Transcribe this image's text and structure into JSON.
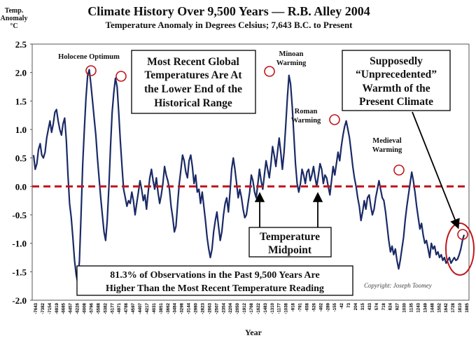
{
  "chart_data": {
    "type": "line",
    "title": "Climate History Over 9,500 Years — R.B. Alley 2004",
    "subtitle": "Temperature Anomaly in Degrees Celsius; 7,643 B.C. to Present",
    "ylabel_lines": [
      "Temp.",
      "Anomaly",
      "°C"
    ],
    "xlabel": "Year",
    "ylim": [
      -2.0,
      2.5
    ],
    "yticks": [
      "2.5",
      "2.0",
      "1.5",
      "1.0",
      "0.5",
      "0.0",
      "-0.5",
      "-1.0",
      "-1.5",
      "-2.0"
    ],
    "ytick_values": [
      2.5,
      2.0,
      1.5,
      1.0,
      0.5,
      0.0,
      -0.5,
      -1.0,
      -1.5,
      -2.0
    ],
    "xticks": [
      "-7643",
      "-7382",
      "-7154",
      "-6919",
      "-6685",
      "-6457",
      "-6226",
      "-6008",
      "-5796",
      "-5588",
      "-5382",
      "-5177",
      "-4971",
      "-4788",
      "-4597",
      "-4407",
      "-4217",
      "-4031",
      "-3851",
      "-3662",
      "-3484",
      "-3298",
      "-3144",
      "-2980",
      "-2823",
      "-2663",
      "-2507",
      "-2354",
      "-2204",
      "-2050",
      "-1912",
      "-1768",
      "-1622",
      "-1483",
      "-1310",
      "-1177",
      "-1038",
      "-918",
      "-791",
      "-658",
      "-526",
      "-402",
      "-289",
      "-155",
      "-42",
      "73",
      "204",
      "315",
      "433",
      "574",
      "718",
      "824",
      "927",
      "1030",
      "1135",
      "1243",
      "1349",
      "1448",
      "1552",
      "1642",
      "1728",
      "1810",
      "1885"
    ],
    "series": [
      {
        "name": "Temperature anomaly",
        "color": "#1a2a66",
        "values": [
          0.55,
          0.3,
          0.4,
          0.65,
          0.75,
          0.55,
          0.5,
          0.6,
          0.85,
          1.0,
          1.15,
          0.95,
          1.1,
          1.3,
          1.35,
          1.15,
          1.0,
          0.9,
          1.1,
          1.2,
          0.8,
          0.2,
          -0.3,
          -0.55,
          -0.9,
          -1.3,
          -1.55,
          -1.7,
          -1.3,
          -0.5,
          0.4,
          1.0,
          1.55,
          1.95,
          2.05,
          1.8,
          1.5,
          1.2,
          0.9,
          0.5,
          0.15,
          -0.2,
          -0.5,
          -0.8,
          -0.95,
          -0.6,
          0.0,
          0.7,
          1.3,
          1.65,
          1.9,
          1.75,
          1.3,
          0.8,
          0.35,
          -0.05,
          -0.2,
          -0.35,
          -0.25,
          -0.3,
          -0.1,
          -0.25,
          -0.5,
          -0.3,
          -0.1,
          0.1,
          -0.05,
          -0.25,
          -0.15,
          -0.4,
          -0.1,
          0.15,
          0.3,
          0.1,
          -0.05,
          0.15,
          -0.1,
          -0.3,
          -0.15,
          0.05,
          0.35,
          0.2,
          0.1,
          -0.05,
          -0.35,
          -0.55,
          -0.8,
          -0.7,
          -0.3,
          0.05,
          0.3,
          0.55,
          0.45,
          0.25,
          0.15,
          0.45,
          0.55,
          0.35,
          0.05,
          0.2,
          -0.1,
          -0.05,
          -0.3,
          -0.1,
          -0.35,
          -0.6,
          -0.9,
          -1.1,
          -1.25,
          -1.1,
          -0.8,
          -0.6,
          -0.45,
          -0.7,
          -0.95,
          -0.8,
          -0.5,
          -0.3,
          -0.2,
          -0.45,
          -0.1,
          0.3,
          0.5,
          0.3,
          0.05,
          -0.2,
          -0.05,
          -0.2,
          -0.4,
          -0.55,
          -0.5,
          -0.3,
          -0.1,
          0.2,
          0.1,
          -0.1,
          -0.2,
          0.05,
          0.3,
          0.1,
          -0.05,
          0.2,
          0.45,
          0.3,
          0.15,
          0.4,
          0.7,
          0.55,
          0.35,
          0.6,
          0.85,
          0.6,
          0.3,
          0.6,
          1.05,
          1.55,
          1.95,
          1.8,
          1.4,
          0.9,
          0.4,
          0.05,
          -0.1,
          0.05,
          0.3,
          0.2,
          0.05,
          0.25,
          0.3,
          0.1,
          0.2,
          0.35,
          0.15,
          0.0,
          0.2,
          0.4,
          0.3,
          0.05,
          0.2,
          0.15,
          0.0,
          -0.15,
          0.1,
          0.35,
          0.2,
          0.4,
          0.6,
          0.45,
          0.7,
          0.9,
          1.05,
          1.15,
          1.0,
          0.85,
          0.6,
          0.35,
          0.15,
          0.0,
          -0.2,
          -0.35,
          -0.6,
          -0.45,
          -0.25,
          -0.4,
          -0.2,
          -0.15,
          -0.35,
          -0.5,
          -0.4,
          -0.2,
          -0.05,
          0.1,
          -0.05,
          -0.2,
          -0.25,
          -0.45,
          -0.7,
          -0.95,
          -1.15,
          -1.05,
          -1.2,
          -1.1,
          -1.3,
          -1.45,
          -1.3,
          -1.1,
          -0.9,
          -0.6,
          -0.35,
          -0.15,
          0.05,
          0.25,
          0.1,
          -0.1,
          -0.35,
          -0.55,
          -0.75,
          -0.65,
          -0.85,
          -1.0,
          -0.95,
          -1.1,
          -1.25,
          -1.0,
          -1.1,
          -1.05,
          -1.2,
          -1.15,
          -1.25,
          -1.2,
          -1.3,
          -1.25,
          -1.35,
          -1.3,
          -1.25,
          -1.35,
          -1.3,
          -1.25,
          -1.3,
          -1.28,
          -1.2,
          -1.1,
          -0.95,
          -0.85
        ]
      }
    ],
    "midpoint_value": 0.0,
    "annotations": {
      "holocene": "Holocene Optimum",
      "minoan_1": "Minoan",
      "minoan_2": "Warming",
      "roman_1": "Roman",
      "roman_2": "Warming",
      "medieval_1": "Medieval",
      "medieval_2": "Warming",
      "box_recent_1": "Most Recent Global",
      "box_recent_2": "Temperatures Are At",
      "box_recent_3": "the Lower End of the",
      "box_recent_4": "Historical Range",
      "box_unprec_1": "Supposedly",
      "box_unprec_2": "“Unprecedented”",
      "box_unprec_3": "Warmth of the",
      "box_unprec_4": "Present Climate",
      "midpoint_1": "Temperature",
      "midpoint_2": "Midpoint",
      "obs_1": "81.3% of Observations in the Past 9,500 Years Are",
      "obs_2": "Higher Than the Most Recent Temperature Reading",
      "copyright": "Copyright: Joseph Toomey"
    },
    "colors": {
      "line": "#1a2a66",
      "midline": "#c0161c",
      "circle": "#c0161c",
      "arrow": "#000000"
    }
  }
}
